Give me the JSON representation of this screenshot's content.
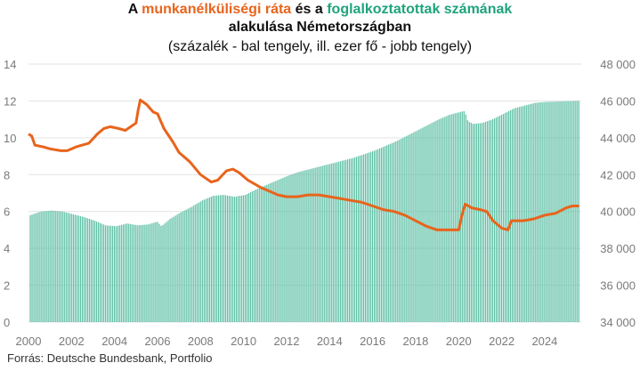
{
  "title": {
    "line1_part1": "A ",
    "line1_orange": "munkanélküliségi ráta",
    "line1_part2": " és a ",
    "line1_green": "foglalkoztatottak számának",
    "line2": "alakulása Németországban",
    "line3": "(százalék - bal tengely, ill. ezer fő - jobb tengely)"
  },
  "source": "Forrás: Deutsche Bundesbank, Portfolio",
  "colors": {
    "unemployment": "#E8641C",
    "employment": "#5DBFA4",
    "grid": "#e3e3e3"
  },
  "chart_data": {
    "type": "bar+line",
    "x_ticks": [
      "2000",
      "2002",
      "2004",
      "2006",
      "2008",
      "2010",
      "2012",
      "2014",
      "2016",
      "2018",
      "2020",
      "2022",
      "2024"
    ],
    "y_left": {
      "min": 0,
      "max": 14,
      "ticks": [
        "0",
        "2",
        "4",
        "6",
        "8",
        "10",
        "12",
        "14"
      ]
    },
    "y_right": {
      "min": 34000,
      "max": 48000,
      "ticks": [
        "34 000",
        "36 000",
        "38 000",
        "40 000",
        "42 000",
        "44 000",
        "46 000",
        "48 000"
      ]
    },
    "grid": true,
    "series": [
      {
        "kind": "bar",
        "axis": "right",
        "points": [
          [
            2000.0,
            39800
          ],
          [
            2000.5,
            40000
          ],
          [
            2001.0,
            40050
          ],
          [
            2001.5,
            40000
          ],
          [
            2002.0,
            39850
          ],
          [
            2002.5,
            39700
          ],
          [
            2003.0,
            39500
          ],
          [
            2003.5,
            39250
          ],
          [
            2004.0,
            39200
          ],
          [
            2004.5,
            39350
          ],
          [
            2005.0,
            39250
          ],
          [
            2005.5,
            39300
          ],
          [
            2005.9,
            39450
          ],
          [
            2006.1,
            39200
          ],
          [
            2006.5,
            39600
          ],
          [
            2007.0,
            39950
          ],
          [
            2007.5,
            40250
          ],
          [
            2008.0,
            40600
          ],
          [
            2008.5,
            40850
          ],
          [
            2009.0,
            40900
          ],
          [
            2009.5,
            40800
          ],
          [
            2010.0,
            40900
          ],
          [
            2010.5,
            41200
          ],
          [
            2011.0,
            41450
          ],
          [
            2011.5,
            41700
          ],
          [
            2012.0,
            41950
          ],
          [
            2012.5,
            42150
          ],
          [
            2013.0,
            42300
          ],
          [
            2013.5,
            42450
          ],
          [
            2014.0,
            42600
          ],
          [
            2014.5,
            42750
          ],
          [
            2015.0,
            42900
          ],
          [
            2015.5,
            43100
          ],
          [
            2016.0,
            43300
          ],
          [
            2016.5,
            43550
          ],
          [
            2017.0,
            43800
          ],
          [
            2017.5,
            44100
          ],
          [
            2018.0,
            44400
          ],
          [
            2018.5,
            44700
          ],
          [
            2019.0,
            45000
          ],
          [
            2019.5,
            45250
          ],
          [
            2020.0,
            45400
          ],
          [
            2020.2,
            45450
          ],
          [
            2020.35,
            44900
          ],
          [
            2020.6,
            44750
          ],
          [
            2021.0,
            44800
          ],
          [
            2021.5,
            45000
          ],
          [
            2022.0,
            45300
          ],
          [
            2022.5,
            45600
          ],
          [
            2023.0,
            45750
          ],
          [
            2023.5,
            45900
          ],
          [
            2024.0,
            45950
          ],
          [
            2025.5,
            46000
          ]
        ]
      },
      {
        "kind": "line",
        "axis": "left",
        "points": [
          [
            2000.0,
            10.2
          ],
          [
            2000.15,
            10.1
          ],
          [
            2000.3,
            9.6
          ],
          [
            2000.7,
            9.5
          ],
          [
            2001.0,
            9.4
          ],
          [
            2001.5,
            9.3
          ],
          [
            2001.8,
            9.3
          ],
          [
            2002.2,
            9.5
          ],
          [
            2002.5,
            9.6
          ],
          [
            2002.8,
            9.7
          ],
          [
            2003.2,
            10.2
          ],
          [
            2003.5,
            10.5
          ],
          [
            2003.8,
            10.6
          ],
          [
            2004.2,
            10.5
          ],
          [
            2004.5,
            10.4
          ],
          [
            2005.0,
            10.8
          ],
          [
            2005.1,
            11.5
          ],
          [
            2005.2,
            12.05
          ],
          [
            2005.5,
            11.8
          ],
          [
            2005.8,
            11.4
          ],
          [
            2006.0,
            11.3
          ],
          [
            2006.3,
            10.5
          ],
          [
            2006.7,
            9.8
          ],
          [
            2007.0,
            9.2
          ],
          [
            2007.5,
            8.7
          ],
          [
            2008.0,
            8.0
          ],
          [
            2008.5,
            7.6
          ],
          [
            2008.8,
            7.7
          ],
          [
            2009.2,
            8.2
          ],
          [
            2009.5,
            8.3
          ],
          [
            2009.8,
            8.1
          ],
          [
            2010.2,
            7.7
          ],
          [
            2010.5,
            7.5
          ],
          [
            2010.8,
            7.3
          ],
          [
            2011.2,
            7.1
          ],
          [
            2011.6,
            6.9
          ],
          [
            2012.0,
            6.8
          ],
          [
            2012.5,
            6.8
          ],
          [
            2013.0,
            6.9
          ],
          [
            2013.5,
            6.9
          ],
          [
            2014.0,
            6.8
          ],
          [
            2014.5,
            6.7
          ],
          [
            2015.0,
            6.6
          ],
          [
            2015.5,
            6.5
          ],
          [
            2016.0,
            6.3
          ],
          [
            2016.5,
            6.1
          ],
          [
            2017.0,
            6.0
          ],
          [
            2017.5,
            5.8
          ],
          [
            2018.0,
            5.5
          ],
          [
            2018.5,
            5.2
          ],
          [
            2019.0,
            5.0
          ],
          [
            2019.5,
            5.0
          ],
          [
            2020.0,
            5.0
          ],
          [
            2020.15,
            5.8
          ],
          [
            2020.3,
            6.4
          ],
          [
            2020.6,
            6.2
          ],
          [
            2021.0,
            6.1
          ],
          [
            2021.3,
            6.0
          ],
          [
            2021.6,
            5.5
          ],
          [
            2022.0,
            5.1
          ],
          [
            2022.3,
            5.0
          ],
          [
            2022.45,
            5.5
          ],
          [
            2022.7,
            5.5
          ],
          [
            2023.0,
            5.5
          ],
          [
            2023.5,
            5.6
          ],
          [
            2024.0,
            5.8
          ],
          [
            2024.5,
            5.9
          ],
          [
            2025.0,
            6.2
          ],
          [
            2025.3,
            6.3
          ],
          [
            2025.6,
            6.3
          ]
        ]
      }
    ]
  }
}
